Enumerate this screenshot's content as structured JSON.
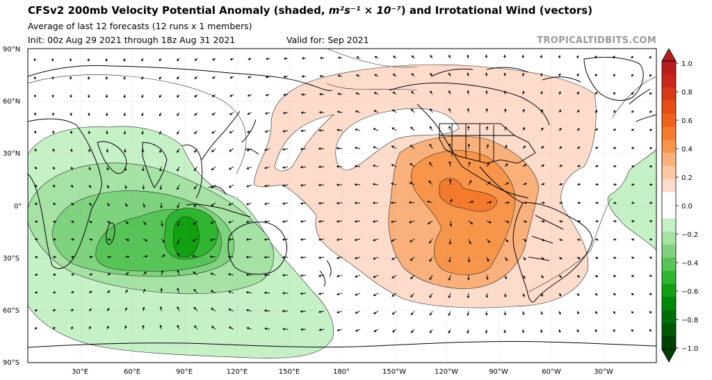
{
  "header": {
    "title_main": "CFSv2 200mb Velocity Potential Anomaly (shaded, ",
    "title_units": "m²s⁻¹ × 10⁻⁷",
    "title_tail": ") and Irrotational Wind (vectors)",
    "subtitle": "Average of last 12 forecasts (12 runs x 1 members)",
    "init": "Init: 00z Aug 29 2021 through 18z Aug 31 2021",
    "valid": "Valid for: Sep 2021",
    "brand": "TROPICALTIDBITS.COM"
  },
  "map": {
    "projection": "PlateCarree",
    "central_longitude": 180,
    "lon_range": [
      0,
      360
    ],
    "lat_range": [
      -90,
      90
    ],
    "lat_labels": [
      "90°N",
      "60°N",
      "30°N",
      "0°",
      "30°S",
      "60°S",
      "90°S"
    ],
    "lon_labels": [
      "30°E",
      "60°E",
      "90°E",
      "120°E",
      "150°E",
      "180°",
      "150°W",
      "120°W",
      "90°W",
      "60°W",
      "30°W"
    ],
    "gridlines": true,
    "features": [
      "coastlines",
      "country borders",
      "US state borders"
    ],
    "fields": {
      "shaded": "velocity potential anomaly",
      "vectors": "irrotational wind"
    },
    "anomaly_centers": [
      {
        "sign": "negative",
        "lon": 87,
        "lat": -25,
        "value": -0.6,
        "region": "Indian Ocean"
      },
      {
        "sign": "positive",
        "lon": 239,
        "lat": -2,
        "value": 0.5,
        "region": "Eastern Pacific"
      }
    ]
  },
  "colorbar": {
    "ticks": [
      "1.0",
      "0.8",
      "0.6",
      "0.4",
      "0.2",
      "0.0",
      "−0.2",
      "−0.4",
      "−0.6",
      "−0.8",
      "−1.0"
    ],
    "colors": [
      "#b71c1c",
      "#c8281a",
      "#d63a16",
      "#e54d17",
      "#f0611c",
      "#f47a2c",
      "#f7954b",
      "#fab07a",
      "#fcc7a3",
      "#fddccb",
      "#ffffff",
      "#ffffff",
      "#c6f0c6",
      "#a5e2a4",
      "#7fd37e",
      "#57c457",
      "#2fb52f",
      "#10a010",
      "#00880a",
      "#006f08",
      "#005806",
      "#003f04"
    ]
  }
}
